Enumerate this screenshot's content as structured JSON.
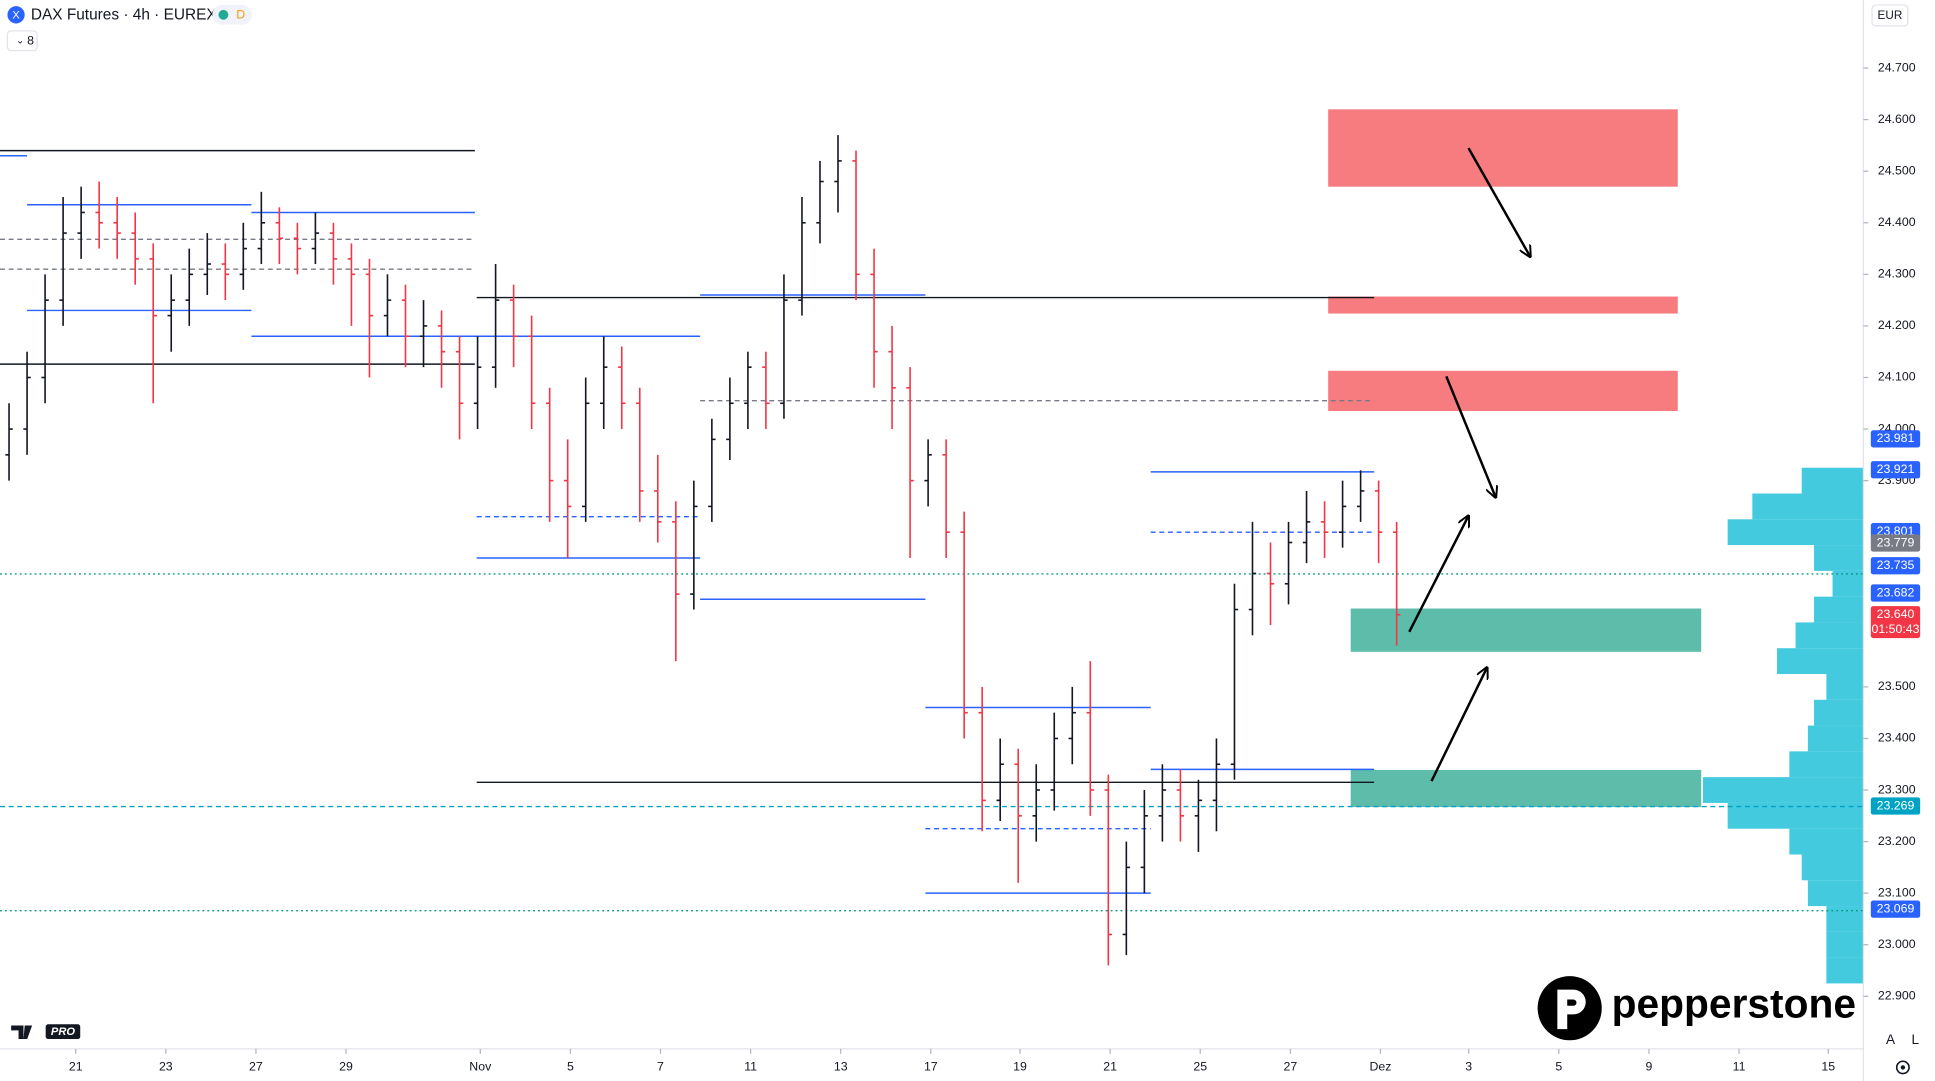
{
  "chart_data": {
    "type": "ohlc",
    "title": "DAX Futures · 4h · EUREX",
    "badge": "D",
    "indicator_count": "8",
    "currency": "EUR",
    "brand": "pepperstone",
    "platform": "PRO",
    "footer_buttons": [
      "A",
      "L"
    ],
    "up_color": "#131722",
    "down_color": "#f23645",
    "xlim": [
      0,
      206.8
    ],
    "ylim": [
      22.798,
      24.832
    ],
    "xticks": [
      {
        "value": 8.4,
        "label": "21"
      },
      {
        "value": 18.4,
        "label": "23"
      },
      {
        "value": 28.4,
        "label": "27"
      },
      {
        "value": 38.4,
        "label": "29"
      },
      {
        "value": 53.3,
        "label": "Nov"
      },
      {
        "value": 63.3,
        "label": "5"
      },
      {
        "value": 73.3,
        "label": "7"
      },
      {
        "value": 83.3,
        "label": "11"
      },
      {
        "value": 93.3,
        "label": "13"
      },
      {
        "value": 103.3,
        "label": "17"
      },
      {
        "value": 113.2,
        "label": "19"
      },
      {
        "value": 123.2,
        "label": "21"
      },
      {
        "value": 133.2,
        "label": "25"
      },
      {
        "value": 143.2,
        "label": "27"
      },
      {
        "value": 153.2,
        "label": "Dez"
      },
      {
        "value": 163.0,
        "label": "3"
      },
      {
        "value": 173.0,
        "label": "5"
      },
      {
        "value": 183.0,
        "label": "9"
      },
      {
        "value": 193.0,
        "label": "11"
      },
      {
        "value": 202.9,
        "label": "15"
      }
    ],
    "yticks": [
      {
        "value": 24.7,
        "label": "24.700"
      },
      {
        "value": 24.6,
        "label": "24.600"
      },
      {
        "value": 24.5,
        "label": "24.500"
      },
      {
        "value": 24.4,
        "label": "24.400"
      },
      {
        "value": 24.3,
        "label": "24.300"
      },
      {
        "value": 24.2,
        "label": "24.200"
      },
      {
        "value": 24.1,
        "label": "24.100"
      },
      {
        "value": 24.0,
        "label": "24.000"
      },
      {
        "value": 23.9,
        "label": "23.900"
      },
      {
        "value": 23.5,
        "label": "23.500"
      },
      {
        "value": 23.4,
        "label": "23.400"
      },
      {
        "value": 23.3,
        "label": "23.300"
      },
      {
        "value": 23.2,
        "label": "23.200"
      },
      {
        "value": 23.1,
        "label": "23.100"
      },
      {
        "value": 23.0,
        "label": "23.000"
      },
      {
        "value": 22.9,
        "label": "22.900"
      }
    ],
    "x": [
      1,
      3,
      5,
      7,
      9,
      11,
      13,
      15,
      17,
      19,
      21,
      23,
      25,
      27,
      29,
      31,
      33,
      35,
      37,
      39,
      41,
      43,
      45,
      47,
      49,
      51,
      53,
      55,
      57,
      59,
      61,
      63,
      65,
      67,
      69,
      71,
      73,
      75,
      77,
      79,
      81,
      83,
      85,
      87,
      89,
      91,
      93,
      95,
      97,
      99,
      101,
      103,
      105,
      107,
      109,
      111,
      113,
      115,
      117,
      119,
      121,
      123,
      125,
      127,
      129,
      131,
      133,
      135,
      137,
      139,
      141,
      143,
      145,
      147,
      149,
      151,
      153,
      155
    ],
    "candles": [
      [
        23.95,
        24.05,
        23.9,
        24.0
      ],
      [
        24.0,
        24.15,
        23.95,
        24.1
      ],
      [
        24.1,
        24.3,
        24.05,
        24.25
      ],
      [
        24.25,
        24.45,
        24.2,
        24.38
      ],
      [
        24.38,
        24.47,
        24.33,
        24.42
      ],
      [
        24.42,
        24.48,
        24.35,
        24.4
      ],
      [
        24.4,
        24.45,
        24.33,
        24.38
      ],
      [
        24.38,
        24.42,
        24.28,
        24.33
      ],
      [
        24.33,
        24.36,
        24.05,
        24.22
      ],
      [
        24.22,
        24.3,
        24.15,
        24.25
      ],
      [
        24.25,
        24.35,
        24.2,
        24.3
      ],
      [
        24.3,
        24.38,
        24.26,
        24.32
      ],
      [
        24.32,
        24.36,
        24.25,
        24.3
      ],
      [
        24.3,
        24.4,
        24.27,
        24.35
      ],
      [
        24.35,
        24.46,
        24.32,
        24.4
      ],
      [
        24.4,
        24.43,
        24.32,
        24.37
      ],
      [
        24.37,
        24.4,
        24.3,
        24.35
      ],
      [
        24.35,
        24.42,
        24.32,
        24.38
      ],
      [
        24.38,
        24.4,
        24.28,
        24.33
      ],
      [
        24.33,
        24.36,
        24.2,
        24.3
      ],
      [
        24.3,
        24.33,
        24.1,
        24.22
      ],
      [
        24.22,
        24.3,
        24.18,
        24.25
      ],
      [
        24.25,
        24.28,
        24.12,
        24.18
      ],
      [
        24.18,
        24.25,
        24.12,
        24.2
      ],
      [
        24.2,
        24.23,
        24.08,
        24.15
      ],
      [
        24.15,
        24.18,
        23.98,
        24.05
      ],
      [
        24.05,
        24.18,
        24.0,
        24.12
      ],
      [
        24.12,
        24.32,
        24.08,
        24.25
      ],
      [
        24.25,
        24.28,
        24.12,
        24.18
      ],
      [
        24.18,
        24.22,
        24.0,
        24.05
      ],
      [
        24.05,
        24.08,
        23.82,
        23.9
      ],
      [
        23.9,
        23.98,
        23.75,
        23.85
      ],
      [
        23.85,
        24.1,
        23.82,
        24.05
      ],
      [
        24.05,
        24.18,
        24.0,
        24.12
      ],
      [
        24.12,
        24.16,
        24.0,
        24.05
      ],
      [
        24.05,
        24.08,
        23.82,
        23.88
      ],
      [
        23.88,
        23.95,
        23.78,
        23.82
      ],
      [
        23.82,
        23.86,
        23.55,
        23.68
      ],
      [
        23.68,
        23.9,
        23.65,
        23.85
      ],
      [
        23.85,
        24.02,
        23.82,
        23.98
      ],
      [
        23.98,
        24.1,
        23.94,
        24.05
      ],
      [
        24.05,
        24.15,
        24.0,
        24.12
      ],
      [
        24.12,
        24.15,
        24.0,
        24.05
      ],
      [
        24.05,
        24.3,
        24.02,
        24.25
      ],
      [
        24.25,
        24.45,
        24.22,
        24.4
      ],
      [
        24.4,
        24.52,
        24.36,
        24.48
      ],
      [
        24.48,
        24.57,
        24.42,
        24.52
      ],
      [
        24.52,
        24.54,
        24.25,
        24.3
      ],
      [
        24.3,
        24.35,
        24.08,
        24.15
      ],
      [
        24.15,
        24.2,
        24.0,
        24.08
      ],
      [
        24.08,
        24.12,
        23.75,
        23.9
      ],
      [
        23.9,
        23.98,
        23.85,
        23.95
      ],
      [
        23.95,
        23.98,
        23.75,
        23.8
      ],
      [
        23.8,
        23.84,
        23.4,
        23.45
      ],
      [
        23.45,
        23.5,
        23.22,
        23.28
      ],
      [
        23.28,
        23.4,
        23.24,
        23.35
      ],
      [
        23.35,
        23.38,
        23.12,
        23.25
      ],
      [
        23.25,
        23.35,
        23.2,
        23.3
      ],
      [
        23.3,
        23.45,
        23.26,
        23.4
      ],
      [
        23.4,
        23.5,
        23.35,
        23.45
      ],
      [
        23.45,
        23.55,
        23.25,
        23.3
      ],
      [
        23.3,
        23.33,
        22.96,
        23.02
      ],
      [
        23.02,
        23.2,
        22.98,
        23.15
      ],
      [
        23.15,
        23.3,
        23.1,
        23.25
      ],
      [
        23.25,
        23.35,
        23.2,
        23.3
      ],
      [
        23.3,
        23.34,
        23.2,
        23.25
      ],
      [
        23.25,
        23.32,
        23.18,
        23.28
      ],
      [
        23.28,
        23.4,
        23.22,
        23.35
      ],
      [
        23.35,
        23.7,
        23.32,
        23.65
      ],
      [
        23.65,
        23.82,
        23.6,
        23.72
      ],
      [
        23.72,
        23.78,
        23.62,
        23.7
      ],
      [
        23.7,
        23.82,
        23.66,
        23.78
      ],
      [
        23.78,
        23.88,
        23.74,
        23.82
      ],
      [
        23.82,
        23.86,
        23.75,
        23.8
      ],
      [
        23.8,
        23.9,
        23.77,
        23.85
      ],
      [
        23.85,
        23.92,
        23.82,
        23.88
      ],
      [
        23.88,
        23.9,
        23.74,
        23.8
      ],
      [
        23.8,
        23.82,
        23.58,
        23.64
      ]
    ],
    "zones": [
      {
        "top": 24.62,
        "bottom": 24.47,
        "x": [
          147.4,
          186.2
        ],
        "color": "#f77c80"
      },
      {
        "top": 24.257,
        "bottom": 24.224,
        "x": [
          147.4,
          186.2
        ],
        "color": "#f77c80"
      },
      {
        "top": 24.113,
        "bottom": 24.035,
        "x": [
          147.4,
          186.2
        ],
        "color": "#f77c80"
      },
      {
        "top": 23.652,
        "bottom": 23.568,
        "x": [
          149.9,
          188.8
        ],
        "color": "#5dbdaa"
      },
      {
        "top": 23.339,
        "bottom": 23.267,
        "x": [
          149.9,
          188.8
        ],
        "color": "#5dbdaa"
      }
    ],
    "levels": [
      {
        "price": 24.54,
        "x": [
          0,
          52.7
        ],
        "color": "#131722",
        "style": "solid"
      },
      {
        "price": 24.255,
        "x": [
          52.9,
          152.5
        ],
        "color": "#131722",
        "style": "solid"
      },
      {
        "price": 24.126,
        "x": [
          0,
          52.7
        ],
        "color": "#131722",
        "style": "solid"
      },
      {
        "price": 23.315,
        "x": [
          52.9,
          152.5
        ],
        "color": "#131722",
        "style": "solid"
      },
      {
        "price": 24.53,
        "x": [
          0,
          3
        ],
        "color": "#2962ff",
        "style": "solid"
      },
      {
        "price": 24.435,
        "x": [
          3,
          27.9
        ],
        "color": "#2962ff",
        "style": "solid"
      },
      {
        "price": 24.42,
        "x": [
          27.9,
          52.7
        ],
        "color": "#2962ff",
        "style": "solid"
      },
      {
        "price": 24.23,
        "x": [
          3,
          27.9
        ],
        "color": "#2962ff",
        "style": "solid"
      },
      {
        "price": 24.18,
        "x": [
          27.9,
          77.7
        ],
        "color": "#2962ff",
        "style": "solid"
      },
      {
        "price": 24.26,
        "x": [
          77.7,
          102.7
        ],
        "color": "#2962ff",
        "style": "solid"
      },
      {
        "price": 23.75,
        "x": [
          52.9,
          77.7
        ],
        "color": "#2962ff",
        "style": "solid"
      },
      {
        "price": 23.67,
        "x": [
          77.7,
          102.7
        ],
        "color": "#2962ff",
        "style": "solid"
      },
      {
        "price": 23.917,
        "x": [
          127.7,
          152.5
        ],
        "color": "#2962ff",
        "style": "solid"
      },
      {
        "price": 23.46,
        "x": [
          102.7,
          127.7
        ],
        "color": "#2962ff",
        "style": "solid"
      },
      {
        "price": 23.1,
        "x": [
          102.7,
          127.7
        ],
        "color": "#2962ff",
        "style": "solid"
      },
      {
        "price": 23.34,
        "x": [
          127.7,
          152.5
        ],
        "color": "#2962ff",
        "style": "solid"
      },
      {
        "price": 24.368,
        "x": [
          0,
          52.7
        ],
        "color": "#787b86",
        "style": "dashed"
      },
      {
        "price": 24.31,
        "x": [
          0,
          52.7
        ],
        "color": "#787b86",
        "style": "dashed"
      },
      {
        "price": 24.055,
        "x": [
          77.7,
          152.5
        ],
        "color": "#787b86",
        "style": "dashed"
      },
      {
        "price": 23.83,
        "x": [
          52.9,
          77.7
        ],
        "color": "#2962ff",
        "style": "dashed"
      },
      {
        "price": 23.8,
        "x": [
          127.7,
          152.5
        ],
        "color": "#2962ff",
        "style": "dashed"
      },
      {
        "price": 23.225,
        "x": [
          102.7,
          127.7
        ],
        "color": "#2962ff",
        "style": "dashed"
      },
      {
        "price": 23.719,
        "x": [
          0,
          206.8
        ],
        "color": "#089981",
        "style": "dotted"
      },
      {
        "price": 23.268,
        "x": [
          0,
          206.8
        ],
        "color": "#00a3c4",
        "style": "dashed"
      },
      {
        "price": 23.066,
        "x": [
          0,
          206.8
        ],
        "color": "#089981",
        "style": "dotted"
      }
    ],
    "volume_profile": {
      "color": "#22c1d9",
      "prices": [
        22.95,
        23.0,
        23.05,
        23.1,
        23.15,
        23.2,
        23.25,
        23.3,
        23.35,
        23.4,
        23.45,
        23.5,
        23.55,
        23.6,
        23.65,
        23.7,
        23.75,
        23.8,
        23.85,
        23.9
      ],
      "values": [
        30,
        30,
        30,
        45,
        50,
        60,
        110,
        130,
        60,
        45,
        40,
        30,
        70,
        55,
        40,
        25,
        40,
        110,
        90,
        50
      ]
    },
    "price_tags": [
      {
        "value": 23.981,
        "label": "23.981",
        "color": "#2962ff"
      },
      {
        "value": 23.921,
        "label": "23.921",
        "color": "#2962ff"
      },
      {
        "value": 23.801,
        "label": "23.801",
        "color": "#2962ff"
      },
      {
        "value": 23.779,
        "label": "23.779",
        "color": "#787b86"
      },
      {
        "value": 23.735,
        "label": "23.735",
        "color": "#2962ff"
      },
      {
        "value": 23.682,
        "label": "23.682",
        "color": "#2962ff"
      },
      {
        "value": 23.64,
        "label": "23.640",
        "color": "#f23645",
        "sublabel": "01:50:43"
      },
      {
        "value": 23.269,
        "label": "23.269",
        "color": "#00a3c4"
      },
      {
        "value": 23.069,
        "label": "23.069",
        "color": "#2962ff"
      }
    ]
  }
}
